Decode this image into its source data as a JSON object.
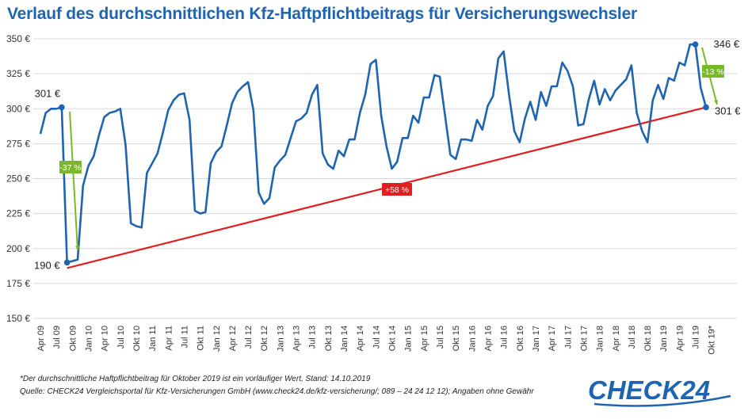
{
  "title": "Verlauf des durchschnittlichen Kfz-Haftpflichtbeitrags für Versicherungswechsler",
  "footnote": "*Der durchschnittliche Haftpflichtbeitrag für Oktober 2019 ist ein vorläufiger Wert, Stand: 14.10.2019",
  "source": "Quelle: CHECK24 Vergleichsportal für Kfz-Versicherungen GmbH (www.check24.de/kfz-versicherung/; 089 – 24 24 12 12); Angaben ohne Gewähr",
  "logo_text": "CHECK24",
  "colors": {
    "line": "#1f64b0",
    "trend": "#e02020",
    "arrow": "#7ab829",
    "grid": "#d9d9d9"
  },
  "chart_data": {
    "type": "line",
    "title": "Verlauf des durchschnittlichen Kfz-Haftpflichtbeitrags für Versicherungswechsler",
    "xlabel": "",
    "ylabel": "",
    "ylim": [
      150,
      350
    ],
    "y_ticks": [
      "150 €",
      "175 €",
      "200 €",
      "225 €",
      "250 €",
      "275 €",
      "300 €",
      "325 €",
      "350 €"
    ],
    "y_tick_values": [
      150,
      175,
      200,
      225,
      250,
      275,
      300,
      325,
      350
    ],
    "x_tick_labels": [
      "Apr 09",
      "Jul 09",
      "Okt 09",
      "Jan 10",
      "Apr 10",
      "Jul 10",
      "Okt 10",
      "Jan 11",
      "Apr 11",
      "Jul 11",
      "Okt 11",
      "Jan 12",
      "Apr 12",
      "Jul 12",
      "Okt 12",
      "Jan 13",
      "Apr 13",
      "Jul 13",
      "Okt 13",
      "Jan 14",
      "Apr 14",
      "Jul 14",
      "Okt 14",
      "Jan 15",
      "Apr 15",
      "Jul 15",
      "Okt 15",
      "Jan 16",
      "Apr 16",
      "Jul 16",
      "Okt 16",
      "Jan 17",
      "Apr 17",
      "Jul 17",
      "Okt 17",
      "Jan 18",
      "Apr 18",
      "Jul 18",
      "Okt 18",
      "Jan 19",
      "Apr 19",
      "Jul 19",
      "Okt 19*"
    ],
    "grid": true,
    "series": [
      {
        "values": [
          282,
          297,
          300,
          300,
          301,
          190,
          191,
          192,
          245,
          259,
          266,
          281,
          294,
          297,
          298,
          300,
          274,
          218,
          216,
          215,
          254,
          261,
          268,
          283,
          299,
          306,
          310,
          311,
          292,
          227,
          225,
          226,
          261,
          269,
          273,
          288,
          304,
          312,
          316,
          319,
          299,
          240,
          232,
          236,
          258,
          263,
          267,
          279,
          291,
          293,
          297,
          310,
          317,
          268,
          260,
          257,
          270,
          266,
          278,
          278,
          297,
          310,
          332,
          335,
          295,
          273,
          257,
          262,
          279,
          279,
          295,
          290,
          308,
          308,
          324,
          323,
          295,
          267,
          264,
          278,
          278,
          277,
          292,
          285,
          302,
          309,
          336,
          341,
          310,
          284,
          276,
          293,
          305,
          292,
          312,
          302,
          316,
          316,
          333,
          327,
          316,
          288,
          289,
          307,
          320,
          303,
          314,
          306,
          313,
          317,
          321,
          331,
          297,
          284,
          276,
          306,
          317,
          307,
          322,
          320,
          333,
          331,
          346,
          346,
          315,
          301
        ]
      }
    ],
    "trend": {
      "from": 190,
      "to": 301,
      "label": "+58 %"
    },
    "annotations": [
      {
        "text": "301 €"
      },
      {
        "text": "190 €"
      },
      {
        "text": "346 €"
      },
      {
        "text": "301 €"
      },
      {
        "text": "-37 %"
      },
      {
        "text": "-13 %"
      }
    ]
  }
}
